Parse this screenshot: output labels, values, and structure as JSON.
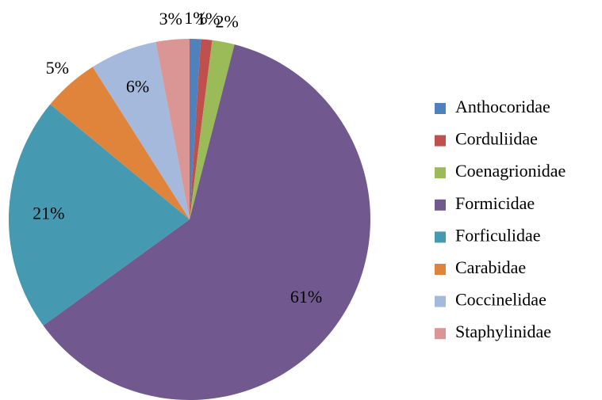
{
  "chart_data": {
    "type": "pie",
    "categories": [
      "Anthocoridae",
      "Corduliidae",
      "Coenagrionidae",
      "Formicidae",
      "Forficulidae",
      "Carabidae",
      "Coccinelidae",
      "Staphylinidae"
    ],
    "values": [
      1,
      1,
      2,
      61,
      21,
      5,
      6,
      3
    ],
    "value_labels": [
      "1%",
      "1%",
      "2%",
      "61%",
      "21%",
      "5%",
      "6%",
      "3%"
    ],
    "colors": [
      "#4f81bd",
      "#c0504d",
      "#9bbb59",
      "#71588f",
      "#4599b0",
      "#e0843c",
      "#a5b9dc",
      "#d99694"
    ],
    "legend": "right"
  }
}
